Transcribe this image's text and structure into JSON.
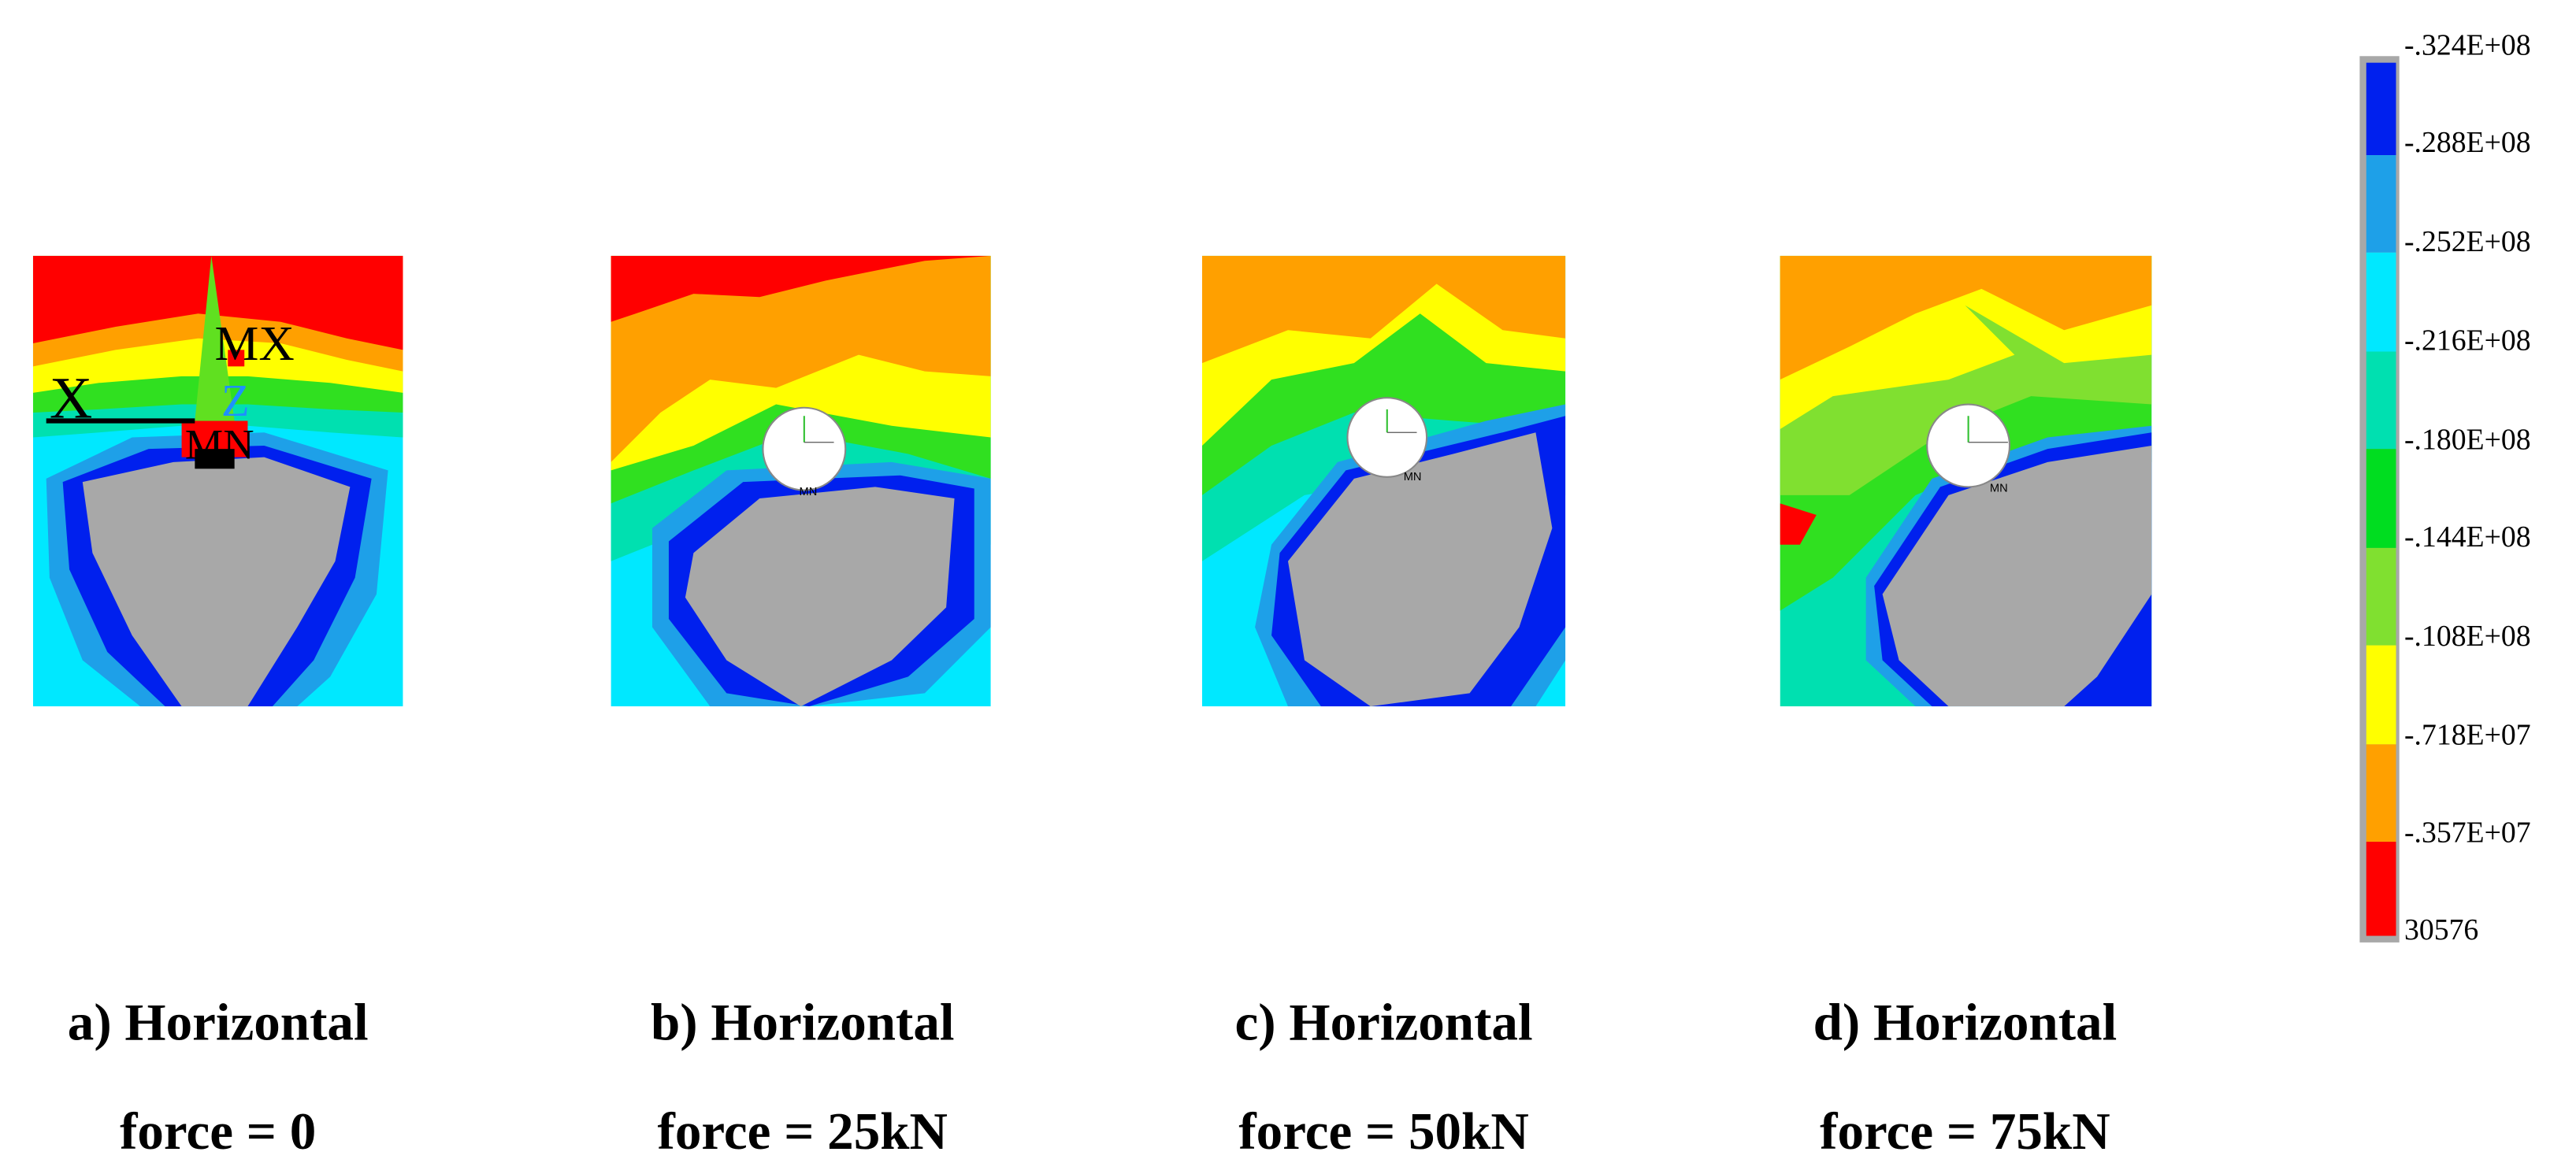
{
  "colorbar": {
    "labels": [
      "-.324E+08",
      "-.288E+08",
      "-.252E+08",
      "-.216E+08",
      "-.180E+08",
      "-.144E+08",
      "-.108E+08",
      "-.718E+07",
      "-.357E+07",
      "30576"
    ]
  },
  "panels": [
    {
      "caption": [
        "a) Horizontal",
        "force = 0"
      ],
      "annotations": {
        "mx": "MX",
        "x": "X",
        "z": "Z",
        "mn": "MN"
      }
    },
    {
      "caption": [
        "b) Horizontal",
        "force = 25kN"
      ],
      "mn": "MN"
    },
    {
      "caption": [
        "c) Horizontal",
        "force = 50kN"
      ],
      "mn": "MN"
    },
    {
      "caption": [
        "d) Horizontal",
        "force = 75kN"
      ],
      "mn": "MN"
    }
  ]
}
